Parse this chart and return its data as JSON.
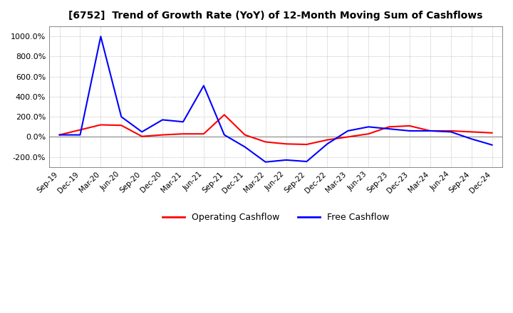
{
  "title": "[6752]  Trend of Growth Rate (YoY) of 12-Month Moving Sum of Cashflows",
  "ylim": [
    -300,
    1100
  ],
  "yticks": [
    -200,
    0,
    200,
    400,
    600,
    800,
    1000
  ],
  "background_color": "#ffffff",
  "grid_color": "#aaaaaa",
  "legend_labels": [
    "Operating Cashflow",
    "Free Cashflow"
  ],
  "legend_colors": [
    "#ff0000",
    "#0000ff"
  ],
  "x_labels": [
    "Sep-19",
    "Dec-19",
    "Mar-20",
    "Jun-20",
    "Sep-20",
    "Dec-20",
    "Mar-21",
    "Jun-21",
    "Sep-21",
    "Dec-21",
    "Mar-22",
    "Jun-22",
    "Sep-22",
    "Dec-22",
    "Mar-23",
    "Jun-23",
    "Sep-23",
    "Dec-23",
    "Mar-24",
    "Jun-24",
    "Sep-24",
    "Dec-24"
  ],
  "operating_cashflow": [
    20,
    70,
    120,
    115,
    5,
    20,
    30,
    30,
    220,
    20,
    -50,
    -70,
    -75,
    -30,
    0,
    30,
    100,
    110,
    60,
    60,
    50,
    40
  ],
  "free_cashflow": [
    20,
    20,
    1000,
    200,
    50,
    170,
    150,
    510,
    20,
    -100,
    -250,
    -230,
    -245,
    -70,
    60,
    100,
    80,
    60,
    60,
    50,
    -20,
    -80
  ]
}
